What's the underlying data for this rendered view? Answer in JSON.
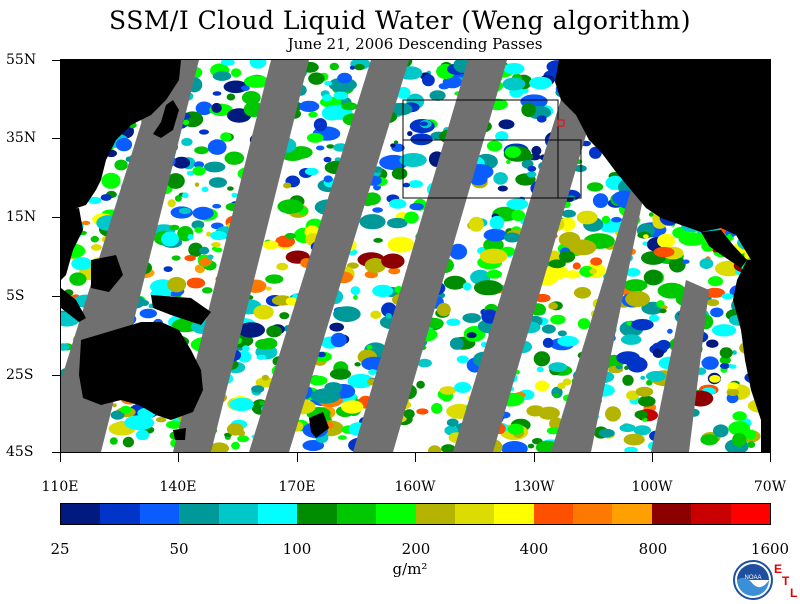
{
  "title": "SSM/I Cloud Liquid Water (Weng algorithm)",
  "subtitle": "June 21, 2006  Descending Passes",
  "map": {
    "lat_labels": [
      "55N",
      "35N",
      "15N",
      "5S",
      "25S",
      "45S"
    ],
    "lon_labels": [
      "110E",
      "140E",
      "170E",
      "160W",
      "130W",
      "100W",
      "70W"
    ],
    "land_color": "#000000",
    "no_data_color": "#707070",
    "clear_color": "#ffffff"
  },
  "colorbar": {
    "colors": [
      "#001a80",
      "#0033c8",
      "#0a5cff",
      "#009999",
      "#00c8c8",
      "#00ffff",
      "#008c00",
      "#00c800",
      "#00ff00",
      "#b4b400",
      "#dcdc00",
      "#ffff00",
      "#ff5000",
      "#ff7800",
      "#ffa000",
      "#8c0000",
      "#c80000",
      "#ff0000"
    ],
    "tick_labels": [
      "25",
      "50",
      "100",
      "200",
      "400",
      "800",
      "1600"
    ],
    "units": "g/m²"
  },
  "logos": {
    "noaa_text": "NOAA",
    "etl_letters": [
      "E",
      "T",
      "L"
    ],
    "noaa_icon": "noaa-logo-icon"
  }
}
